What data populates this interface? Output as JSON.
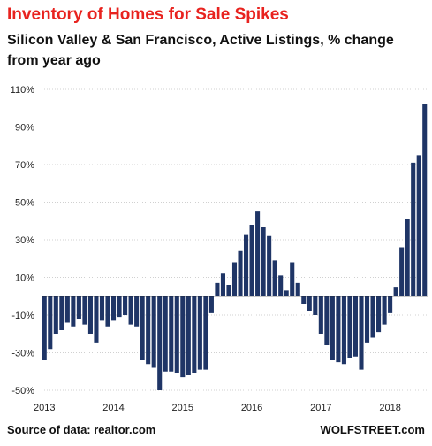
{
  "header": {
    "title": "Inventory of Homes for Sale Spikes",
    "subtitle": "Silicon Valley & San Francisco, Active Listings, % change from year ago"
  },
  "footer": {
    "source": "Source of data: realtor.com",
    "brand": "WOLFSTREET.com"
  },
  "colors": {
    "base": "#1f3566",
    "highlight": "#e8231f",
    "grid": "#d0d0d0"
  },
  "chart_data": {
    "type": "bar",
    "title": "Inventory of Homes for Sale Spikes",
    "subtitle": "Silicon Valley & San Francisco, Active Listings, % change from year ago",
    "y_ticks": [
      "110%",
      "90%",
      "70%",
      "50%",
      "30%",
      "10%",
      "-10%",
      "-30%",
      "-50%"
    ],
    "y_tick_values": [
      110,
      90,
      70,
      50,
      30,
      10,
      -10,
      -30,
      -50
    ],
    "x_ticks": [
      "2013",
      "2014",
      "2015",
      "2016",
      "2017",
      "2018"
    ],
    "ylim": [
      -52,
      110
    ],
    "grid": true,
    "highlight_from_index": 67,
    "series": [
      {
        "values": [
          -34,
          -28,
          -20,
          -18,
          -14,
          -16,
          -12,
          -15,
          -20,
          -25,
          -13,
          -16,
          -13,
          -11,
          -10,
          -15,
          -16,
          -34,
          -36,
          -38,
          -50,
          -40,
          -40,
          -41,
          -43,
          -42,
          -41,
          -39,
          -39,
          -9,
          7,
          12,
          6,
          18,
          24,
          33,
          38,
          45,
          37,
          32,
          19,
          11,
          3,
          18,
          7,
          -4,
          -8,
          -10,
          -20,
          -26,
          -34,
          -35,
          -36,
          -33,
          -32,
          -39,
          -25,
          -22,
          -19,
          -15,
          -9,
          5,
          26,
          41,
          71,
          75,
          102
        ]
      }
    ]
  }
}
